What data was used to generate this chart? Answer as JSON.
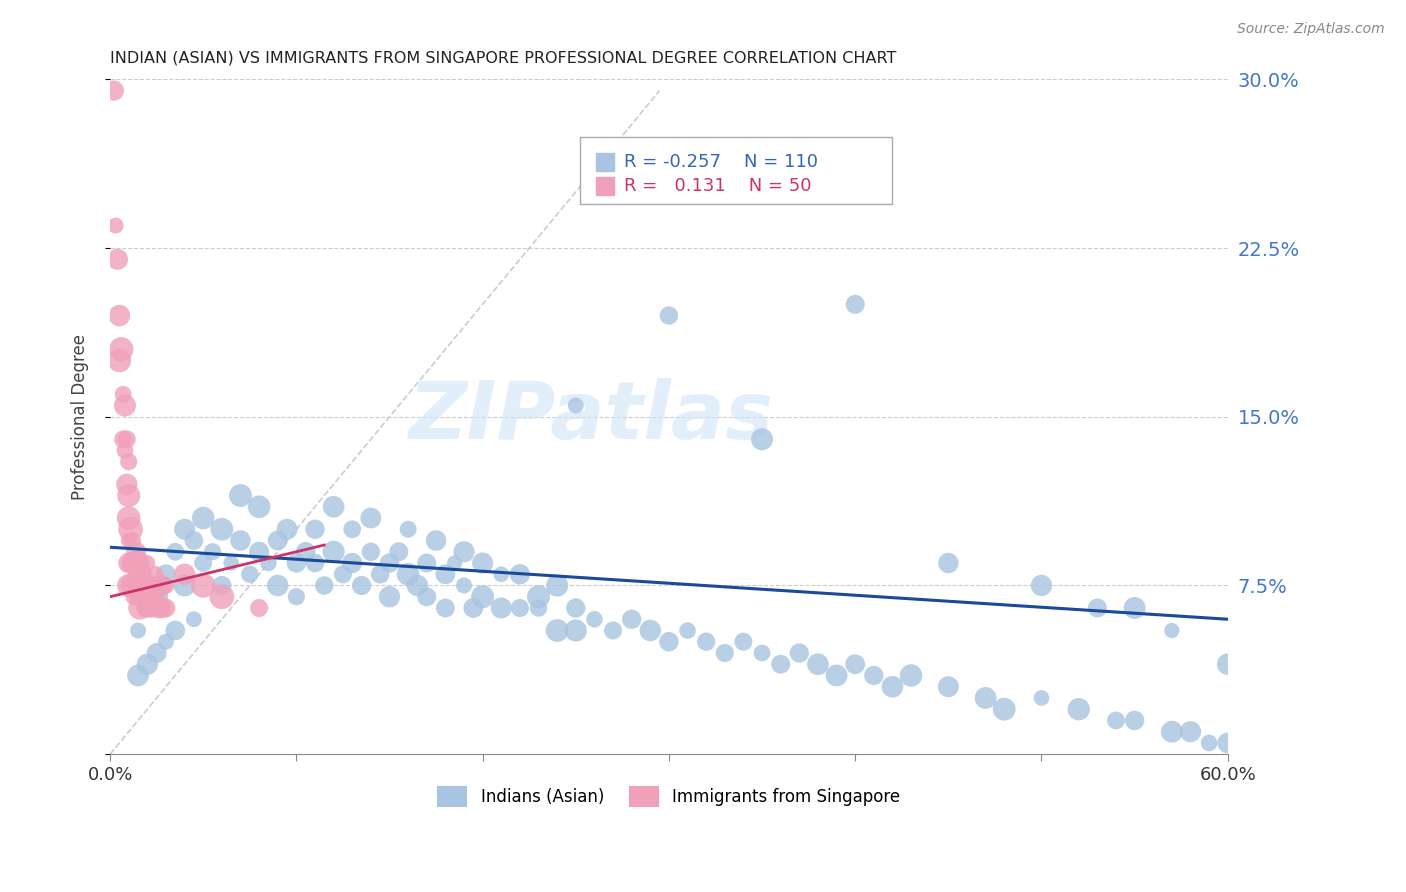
{
  "title": "INDIAN (ASIAN) VS IMMIGRANTS FROM SINGAPORE PROFESSIONAL DEGREE CORRELATION CHART",
  "source": "Source: ZipAtlas.com",
  "ylabel": "Professional Degree",
  "xlim": [
    0.0,
    0.6
  ],
  "ylim": [
    0.0,
    0.3
  ],
  "yticks": [
    0.0,
    0.075,
    0.15,
    0.225,
    0.3
  ],
  "ytick_labels": [
    "",
    "7.5%",
    "15.0%",
    "22.5%",
    "30.0%"
  ],
  "xticks": [
    0.0,
    0.1,
    0.2,
    0.3,
    0.4,
    0.5,
    0.6
  ],
  "xtick_labels_show": [
    "0.0%",
    "60.0%"
  ],
  "blue_R": -0.257,
  "blue_N": 110,
  "pink_R": 0.131,
  "pink_N": 50,
  "blue_color": "#a8c4e0",
  "pink_color": "#f0a0b8",
  "blue_line_color": "#1a4a9a",
  "pink_line_color": "#cc3366",
  "ref_line_color": "#cccccc",
  "watermark": "ZIPatlas",
  "blue_line_x0": 0.0,
  "blue_line_x1": 0.6,
  "blue_line_y0": 0.092,
  "blue_line_y1": 0.06,
  "pink_line_x0": 0.0,
  "pink_line_x1": 0.115,
  "pink_line_y0": 0.07,
  "pink_line_y1": 0.093,
  "ref_line_x0": 0.0,
  "ref_line_x1": 0.295,
  "ref_line_y0": 0.0,
  "ref_line_y1": 0.295,
  "blue_scatter_x": [
    0.015,
    0.015,
    0.02,
    0.02,
    0.025,
    0.025,
    0.03,
    0.03,
    0.035,
    0.035,
    0.04,
    0.04,
    0.045,
    0.045,
    0.05,
    0.05,
    0.055,
    0.06,
    0.06,
    0.065,
    0.07,
    0.07,
    0.075,
    0.08,
    0.08,
    0.085,
    0.09,
    0.09,
    0.095,
    0.1,
    0.1,
    0.105,
    0.11,
    0.11,
    0.115,
    0.12,
    0.12,
    0.125,
    0.13,
    0.13,
    0.135,
    0.14,
    0.14,
    0.145,
    0.15,
    0.15,
    0.155,
    0.16,
    0.16,
    0.165,
    0.17,
    0.17,
    0.175,
    0.18,
    0.18,
    0.185,
    0.19,
    0.19,
    0.195,
    0.2,
    0.2,
    0.21,
    0.21,
    0.22,
    0.22,
    0.23,
    0.23,
    0.24,
    0.24,
    0.25,
    0.25,
    0.26,
    0.27,
    0.28,
    0.29,
    0.3,
    0.31,
    0.32,
    0.33,
    0.34,
    0.35,
    0.36,
    0.37,
    0.38,
    0.39,
    0.4,
    0.41,
    0.42,
    0.43,
    0.45,
    0.47,
    0.48,
    0.5,
    0.52,
    0.54,
    0.55,
    0.57,
    0.58,
    0.59,
    0.6,
    0.25,
    0.3,
    0.35,
    0.4,
    0.45,
    0.5,
    0.55,
    0.6,
    0.57,
    0.53
  ],
  "blue_scatter_y": [
    0.055,
    0.035,
    0.065,
    0.04,
    0.07,
    0.045,
    0.08,
    0.05,
    0.09,
    0.055,
    0.1,
    0.075,
    0.095,
    0.06,
    0.085,
    0.105,
    0.09,
    0.075,
    0.1,
    0.085,
    0.095,
    0.115,
    0.08,
    0.09,
    0.11,
    0.085,
    0.095,
    0.075,
    0.1,
    0.085,
    0.07,
    0.09,
    0.085,
    0.1,
    0.075,
    0.09,
    0.11,
    0.08,
    0.085,
    0.1,
    0.075,
    0.09,
    0.105,
    0.08,
    0.085,
    0.07,
    0.09,
    0.08,
    0.1,
    0.075,
    0.085,
    0.07,
    0.095,
    0.08,
    0.065,
    0.085,
    0.075,
    0.09,
    0.065,
    0.085,
    0.07,
    0.065,
    0.08,
    0.065,
    0.08,
    0.065,
    0.07,
    0.055,
    0.075,
    0.065,
    0.055,
    0.06,
    0.055,
    0.06,
    0.055,
    0.05,
    0.055,
    0.05,
    0.045,
    0.05,
    0.045,
    0.04,
    0.045,
    0.04,
    0.035,
    0.04,
    0.035,
    0.03,
    0.035,
    0.03,
    0.025,
    0.02,
    0.025,
    0.02,
    0.015,
    0.015,
    0.01,
    0.01,
    0.005,
    0.005,
    0.155,
    0.195,
    0.14,
    0.2,
    0.085,
    0.075,
    0.065,
    0.04,
    0.055,
    0.065
  ],
  "pink_scatter_x": [
    0.002,
    0.003,
    0.004,
    0.005,
    0.005,
    0.006,
    0.007,
    0.007,
    0.008,
    0.008,
    0.009,
    0.009,
    0.01,
    0.01,
    0.01,
    0.01,
    0.01,
    0.01,
    0.011,
    0.011,
    0.012,
    0.012,
    0.013,
    0.013,
    0.014,
    0.014,
    0.015,
    0.015,
    0.016,
    0.016,
    0.017,
    0.018,
    0.018,
    0.019,
    0.02,
    0.02,
    0.021,
    0.022,
    0.023,
    0.024,
    0.025,
    0.026,
    0.027,
    0.028,
    0.03,
    0.03,
    0.04,
    0.05,
    0.06,
    0.08
  ],
  "pink_scatter_y": [
    0.295,
    0.235,
    0.22,
    0.195,
    0.175,
    0.18,
    0.16,
    0.14,
    0.155,
    0.135,
    0.14,
    0.12,
    0.13,
    0.115,
    0.105,
    0.095,
    0.085,
    0.075,
    0.1,
    0.085,
    0.095,
    0.075,
    0.085,
    0.07,
    0.09,
    0.075,
    0.085,
    0.07,
    0.08,
    0.065,
    0.075,
    0.07,
    0.08,
    0.065,
    0.075,
    0.085,
    0.07,
    0.065,
    0.075,
    0.08,
    0.07,
    0.065,
    0.075,
    0.065,
    0.075,
    0.065,
    0.08,
    0.075,
    0.07,
    0.065
  ]
}
